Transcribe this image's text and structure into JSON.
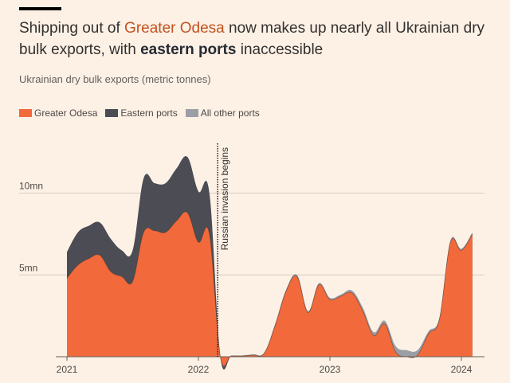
{
  "title": {
    "pre": "Shipping out of ",
    "highlight": "Greater Odesa",
    "mid": " now makes up nearly all Ukrainian dry bulk exports, with ",
    "bold": "eastern ports",
    "post": " inaccessible"
  },
  "subtitle": "Ukrainian dry bulk exports (metric tonnes)",
  "chart_data": {
    "type": "area",
    "stacked": true,
    "ylim": [
      0,
      13
    ],
    "yticks": [
      {
        "value": 5,
        "label": "5mn"
      },
      {
        "value": 10,
        "label": "10mn"
      }
    ],
    "xticks": [
      {
        "date": "2021-01",
        "label": "2021"
      },
      {
        "date": "2022-01",
        "label": "2022"
      },
      {
        "date": "2023-01",
        "label": "2023"
      },
      {
        "date": "2024-01",
        "label": "2024"
      }
    ],
    "grid": true,
    "legend_placement": "top-left",
    "annotation": {
      "date": "2022-02-24",
      "label": "Russian invasion begins"
    },
    "x": [
      "2021-01",
      "2021-02",
      "2021-03",
      "2021-04",
      "2021-05",
      "2021-06",
      "2021-07",
      "2021-08",
      "2021-09",
      "2021-10",
      "2021-11",
      "2021-12",
      "2022-01",
      "2022-02",
      "2022-03",
      "2022-04",
      "2022-05",
      "2022-06",
      "2022-07",
      "2022-08",
      "2022-09",
      "2022-10",
      "2022-11",
      "2022-12",
      "2023-01",
      "2023-02",
      "2023-03",
      "2023-04",
      "2023-05",
      "2023-06",
      "2023-07",
      "2023-08",
      "2023-09",
      "2023-10",
      "2023-11",
      "2023-12",
      "2024-01",
      "2024-02"
    ],
    "series": [
      {
        "name": "Greater Odesa",
        "color": "#f26a3b",
        "values": [
          4.8,
          5.6,
          6.0,
          6.2,
          5.2,
          4.9,
          4.6,
          7.6,
          7.7,
          7.6,
          8.3,
          8.8,
          7.0,
          7.5,
          0,
          0.05,
          0.05,
          0.1,
          0.2,
          1.9,
          4.0,
          4.9,
          2.7,
          4.4,
          3.5,
          3.7,
          3.9,
          2.8,
          1.3,
          2.0,
          0.3,
          0.0,
          0.1,
          1.4,
          2.3,
          7.0,
          6.5,
          7.5
        ]
      },
      {
        "name": "Eastern ports",
        "color": "#4b4c54",
        "values": [
          1.6,
          2.0,
          2.0,
          2.0,
          2.0,
          1.6,
          1.9,
          3.3,
          2.9,
          3.0,
          3.2,
          3.4,
          3.1,
          2.5,
          0,
          0,
          0,
          0,
          0,
          0,
          0,
          0,
          0,
          0,
          0,
          0,
          0,
          0,
          0,
          0,
          0,
          0,
          0,
          0,
          0,
          0,
          0,
          0
        ]
      },
      {
        "name": "All other ports",
        "color": "#9a9ea5",
        "values": [
          0,
          0,
          0,
          0,
          0,
          0,
          0,
          0,
          0,
          0,
          0,
          0,
          0,
          0,
          0,
          0.02,
          0.03,
          0.05,
          0.05,
          0.1,
          0.1,
          0.1,
          0.1,
          0.1,
          0.1,
          0.1,
          0.15,
          0.2,
          0.2,
          0.2,
          0.35,
          0.4,
          0.3,
          0.15,
          0.1,
          0.1,
          0.1,
          0.1
        ]
      }
    ]
  }
}
